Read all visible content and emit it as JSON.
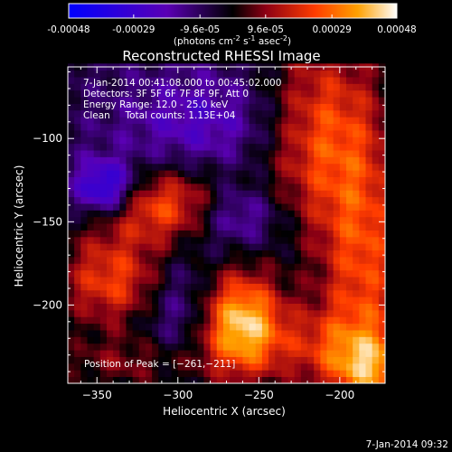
{
  "colorbar": {
    "ticks": [
      "-0.00048",
      "-0.00029",
      "-9.6e-05",
      "9.6e-05",
      "0.00029",
      "0.00048"
    ],
    "tick_values": [
      -0.00048,
      -0.00029,
      -9.6e-05,
      9.6e-05,
      0.00029,
      0.00048
    ],
    "range": [
      -0.00048,
      0.00048
    ],
    "units_prefix": "(photons cm",
    "units_exp1": "-2",
    "units_mid": " s",
    "units_exp2": "-1",
    "units_mid2": " asec",
    "units_exp3": "-2",
    "units_suffix": ")",
    "colors": [
      "#0000ff",
      "#5a00b4",
      "#000000",
      "#8c0014",
      "#ff3c00",
      "#ffa000",
      "#ffffff"
    ]
  },
  "chart_data": {
    "type": "heatmap",
    "title": "Reconstructed RHESSI Image",
    "xlabel": "Heliocentric X (arcsec)",
    "ylabel": "Heliocentric Y (arcsec)",
    "xlim": [
      -368,
      -172
    ],
    "ylim": [
      -247,
      -57
    ],
    "x_ticks": [
      -350,
      -300,
      -250,
      -200
    ],
    "x_tick_labels": [
      "−350",
      "−300",
      "−250",
      "−200"
    ],
    "y_ticks": [
      -100,
      -150,
      -200
    ],
    "y_tick_labels": [
      "−100",
      "−150",
      "−200"
    ],
    "annotations": [
      "7-Jan-2014 00:41:08.000 to 00:45:02.000",
      "Detectors: 3F 5F 6F 7F 8F 9F, Att 0",
      "Energy Range: 12.0 - 25.0 keV",
      "Clean     Total counts: 1.13E+04"
    ],
    "peak_label": "Position of Peak = [−261,−211]",
    "peak": [
      -261,
      -211
    ],
    "blobs": [
      {
        "x": -261,
        "y": -211,
        "sx": 18,
        "sy": 22,
        "a": 1.0
      },
      {
        "x": -305,
        "y": -140,
        "sx": 34,
        "sy": 16,
        "a": 0.7
      },
      {
        "x": -340,
        "y": -185,
        "sx": 25,
        "sy": 20,
        "a": 0.62
      },
      {
        "x": -210,
        "y": -95,
        "sx": 28,
        "sy": 40,
        "a": 0.68
      },
      {
        "x": -185,
        "y": -175,
        "sx": 20,
        "sy": 45,
        "a": 0.6
      },
      {
        "x": -205,
        "y": -225,
        "sx": 30,
        "sy": 18,
        "a": 0.45
      },
      {
        "x": -330,
        "y": -235,
        "sx": 35,
        "sy": 12,
        "a": 0.3
      },
      {
        "x": -180,
        "y": -240,
        "sx": 18,
        "sy": 14,
        "a": 0.55
      },
      {
        "x": -345,
        "y": -130,
        "sx": 14,
        "sy": 12,
        "a": -0.8
      },
      {
        "x": -265,
        "y": -145,
        "sx": 20,
        "sy": 14,
        "a": -0.55
      },
      {
        "x": -280,
        "y": -90,
        "sx": 40,
        "sy": 22,
        "a": -0.35
      },
      {
        "x": -300,
        "y": -200,
        "sx": 16,
        "sy": 22,
        "a": -0.3
      }
    ]
  },
  "footer": {
    "timestamp": "7-Jan-2014 09:32"
  }
}
